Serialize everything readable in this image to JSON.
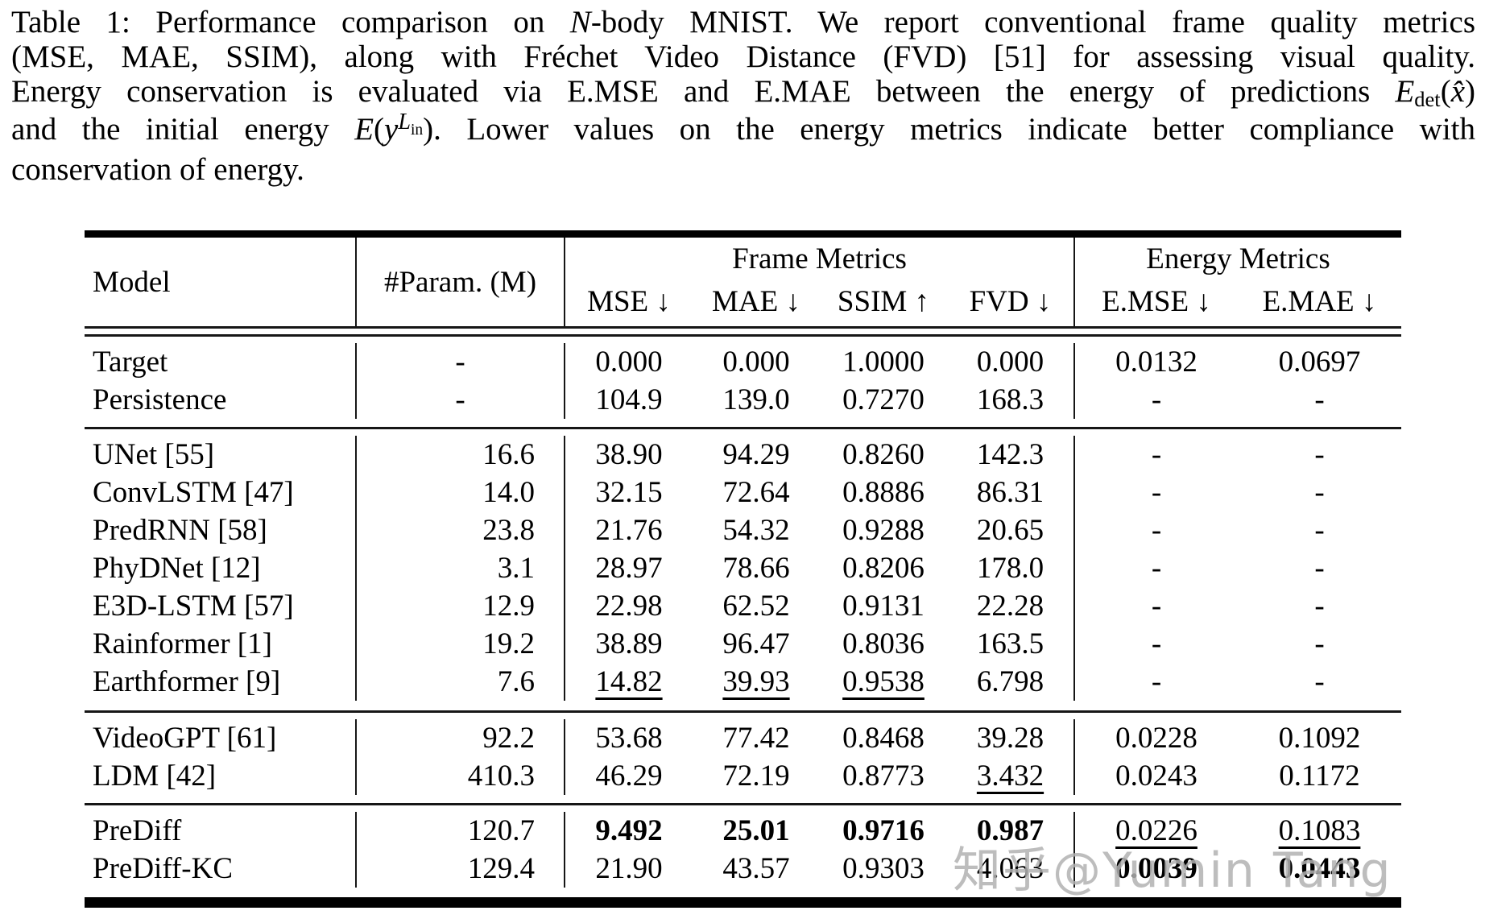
{
  "caption": {
    "lines": [
      {
        "justify": true,
        "segments": [
          {
            "t": "Table 1: Performance comparison on "
          },
          {
            "t": "N",
            "s": "i"
          },
          {
            "t": "-body MNIST. We report conventional frame quality metrics"
          }
        ]
      },
      {
        "justify": true,
        "segments": [
          {
            "t": "(MSE, MAE, SSIM), along with Fréchet Video Distance (FVD) [51] for assessing visual quality."
          }
        ]
      },
      {
        "justify": true,
        "segments": [
          {
            "t": "Energy conservation is evaluated via E.MSE and E.MAE between the energy of predictions "
          },
          {
            "t": "E",
            "s": "i"
          },
          {
            "t": "det",
            "s": "sub"
          },
          {
            "t": "("
          },
          {
            "t": "x̂",
            "s": "i"
          },
          {
            "t": ")"
          }
        ]
      },
      {
        "justify": true,
        "segments": [
          {
            "t": "and the initial energy "
          },
          {
            "t": "E",
            "s": "i"
          },
          {
            "t": "("
          },
          {
            "t": "y",
            "s": "i"
          },
          {
            "t": "L",
            "s": "supi"
          },
          {
            "t": "in",
            "s": "supsub"
          },
          {
            "t": "). Lower values on the energy metrics indicate better compliance with"
          }
        ]
      },
      {
        "justify": false,
        "segments": [
          {
            "t": "conservation of energy."
          }
        ]
      }
    ]
  },
  "table": {
    "header": {
      "model": "Model",
      "params": "#Param. (M)",
      "frame_group": "Frame Metrics",
      "energy_group": "Energy Metrics",
      "metrics": [
        {
          "label": "MSE",
          "arrow": "↓"
        },
        {
          "label": "MAE",
          "arrow": "↓"
        },
        {
          "label": "SSIM",
          "arrow": "↑"
        },
        {
          "label": "FVD",
          "arrow": "↓"
        },
        {
          "label": "E.MSE",
          "arrow": "↓"
        },
        {
          "label": "E.MAE",
          "arrow": "↓"
        }
      ]
    },
    "groups": [
      {
        "name": "reference",
        "rows": [
          {
            "model": "Target",
            "params": "-",
            "cells": [
              {
                "v": "0.000"
              },
              {
                "v": "0.000"
              },
              {
                "v": "1.0000"
              },
              {
                "v": "0.000"
              },
              {
                "v": "0.0132"
              },
              {
                "v": "0.0697"
              }
            ]
          },
          {
            "model": "Persistence",
            "params": "-",
            "cells": [
              {
                "v": "104.9"
              },
              {
                "v": "139.0"
              },
              {
                "v": "0.7270"
              },
              {
                "v": "168.3"
              },
              {
                "v": "-"
              },
              {
                "v": "-"
              }
            ]
          }
        ]
      },
      {
        "name": "deterministic-baselines",
        "rows": [
          {
            "model": "UNet [55]",
            "params": "16.6",
            "cells": [
              {
                "v": "38.90"
              },
              {
                "v": "94.29"
              },
              {
                "v": "0.8260"
              },
              {
                "v": "142.3"
              },
              {
                "v": "-"
              },
              {
                "v": "-"
              }
            ]
          },
          {
            "model": "ConvLSTM [47]",
            "params": "14.0",
            "cells": [
              {
                "v": "32.15"
              },
              {
                "v": "72.64"
              },
              {
                "v": "0.8886"
              },
              {
                "v": "86.31"
              },
              {
                "v": "-"
              },
              {
                "v": "-"
              }
            ]
          },
          {
            "model": "PredRNN [58]",
            "params": "23.8",
            "cells": [
              {
                "v": "21.76"
              },
              {
                "v": "54.32"
              },
              {
                "v": "0.9288"
              },
              {
                "v": "20.65"
              },
              {
                "v": "-"
              },
              {
                "v": "-"
              }
            ]
          },
          {
            "model": "PhyDNet [12]",
            "params": "3.1",
            "cells": [
              {
                "v": "28.97"
              },
              {
                "v": "78.66"
              },
              {
                "v": "0.8206"
              },
              {
                "v": "178.0"
              },
              {
                "v": "-"
              },
              {
                "v": "-"
              }
            ]
          },
          {
            "model": "E3D-LSTM [57]",
            "params": "12.9",
            "cells": [
              {
                "v": "22.98"
              },
              {
                "v": "62.52"
              },
              {
                "v": "0.9131"
              },
              {
                "v": "22.28"
              },
              {
                "v": "-"
              },
              {
                "v": "-"
              }
            ]
          },
          {
            "model": "Rainformer [1]",
            "params": "19.2",
            "cells": [
              {
                "v": "38.89"
              },
              {
                "v": "96.47"
              },
              {
                "v": "0.8036"
              },
              {
                "v": "163.5"
              },
              {
                "v": "-"
              },
              {
                "v": "-"
              }
            ]
          },
          {
            "model": "Earthformer [9]",
            "params": "7.6",
            "cells": [
              {
                "v": "14.82",
                "u": true
              },
              {
                "v": "39.93",
                "u": true
              },
              {
                "v": "0.9538",
                "u": true
              },
              {
                "v": "6.798"
              },
              {
                "v": "-"
              },
              {
                "v": "-"
              }
            ]
          }
        ]
      },
      {
        "name": "generative-baselines",
        "rows": [
          {
            "model": "VideoGPT [61]",
            "params": "92.2",
            "cells": [
              {
                "v": "53.68"
              },
              {
                "v": "77.42"
              },
              {
                "v": "0.8468"
              },
              {
                "v": "39.28"
              },
              {
                "v": "0.0228"
              },
              {
                "v": "0.1092"
              }
            ]
          },
          {
            "model": "LDM [42]",
            "params": "410.3",
            "cells": [
              {
                "v": "46.29"
              },
              {
                "v": "72.19"
              },
              {
                "v": "0.8773"
              },
              {
                "v": "3.432",
                "u": true
              },
              {
                "v": "0.0243"
              },
              {
                "v": "0.1172"
              }
            ]
          }
        ]
      },
      {
        "name": "ours",
        "rows": [
          {
            "model": "PreDiff",
            "params": "120.7",
            "cells": [
              {
                "v": "9.492",
                "b": true
              },
              {
                "v": "25.01",
                "b": true
              },
              {
                "v": "0.9716",
                "b": true
              },
              {
                "v": "0.987",
                "b": true
              },
              {
                "v": "0.0226",
                "u": true
              },
              {
                "v": "0.1083",
                "u": true
              }
            ]
          },
          {
            "model": "PreDiff-KC",
            "params": "129.4",
            "cells": [
              {
                "v": "21.90"
              },
              {
                "v": "43.57"
              },
              {
                "v": "0.9303"
              },
              {
                "v": "4.063"
              },
              {
                "v": "0.0039",
                "b": true
              },
              {
                "v": "0.0443",
                "b": true
              }
            ]
          }
        ]
      }
    ]
  },
  "watermark": {
    "text": "知乎@Yumin Tang",
    "color": "#b2b2b2"
  }
}
